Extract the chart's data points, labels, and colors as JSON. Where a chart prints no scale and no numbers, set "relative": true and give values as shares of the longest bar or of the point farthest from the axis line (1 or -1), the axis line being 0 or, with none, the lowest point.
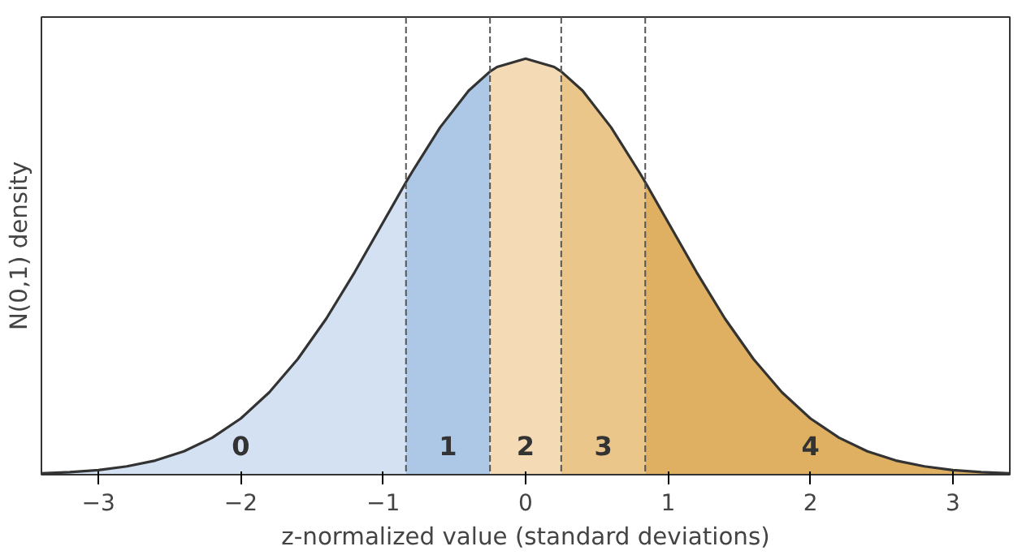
{
  "chart_data": {
    "type": "area",
    "relative": true,
    "xlabel": "z-normalized value (standard deviations)",
    "ylabel": "N(0,1) density",
    "xlim": [
      -3.4,
      3.4
    ],
    "xticks": [
      {
        "value": -3,
        "label": "−3"
      },
      {
        "value": -2,
        "label": "−2"
      },
      {
        "value": -1,
        "label": "−1"
      },
      0,
      1,
      2,
      3
    ],
    "grid": false,
    "series": [
      {
        "color": "#d3e1f2",
        "x": [
          -3.4,
          -3.2,
          -3.0,
          -2.8,
          -2.6,
          -2.4,
          -2.2,
          -2.0,
          -1.8,
          -1.6,
          -1.4,
          -1.2,
          -1.0,
          -0.84
        ],
        "values": [
          0.003,
          0.006,
          0.011,
          0.02,
          0.034,
          0.056,
          0.089,
          0.135,
          0.198,
          0.278,
          0.375,
          0.487,
          0.607,
          0.703
        ]
      },
      {
        "color": "#adc8e6",
        "x": [
          -0.84,
          -0.8,
          -0.6,
          -0.4,
          -0.25
        ],
        "values": [
          0.703,
          0.726,
          0.835,
          0.923,
          0.969
        ]
      },
      {
        "color": "#f4dbb5",
        "x": [
          -0.25,
          -0.2,
          0,
          0.2,
          0.25
        ],
        "values": [
          0.969,
          0.98,
          1.0,
          0.98,
          0.969
        ]
      },
      {
        "color": "#eac68a",
        "x": [
          0.25,
          0.4,
          0.6,
          0.8,
          0.84
        ],
        "values": [
          0.969,
          0.923,
          0.835,
          0.726,
          0.703
        ]
      },
      {
        "color": "#e0b062",
        "x": [
          0.84,
          1.0,
          1.2,
          1.4,
          1.6,
          1.8,
          2.0,
          2.2,
          2.4,
          2.6,
          2.8,
          3.0,
          3.2,
          3.4
        ],
        "values": [
          0.703,
          0.607,
          0.487,
          0.375,
          0.278,
          0.198,
          0.135,
          0.089,
          0.056,
          0.034,
          0.02,
          0.011,
          0.006,
          0.003
        ]
      },
      {
        "type": "line",
        "color": "#333333",
        "x": [
          -3.4,
          -3.2,
          -3.0,
          -2.8,
          -2.6,
          -2.4,
          -2.2,
          -2.0,
          -1.8,
          -1.6,
          -1.4,
          -1.2,
          -1.0,
          -0.84,
          -0.8,
          -0.6,
          -0.4,
          -0.25,
          -0.2,
          0,
          0.2,
          0.25,
          0.4,
          0.6,
          0.8,
          0.84,
          1.0,
          1.2,
          1.4,
          1.6,
          1.8,
          2.0,
          2.2,
          2.4,
          2.6,
          2.8,
          3.0,
          3.2,
          3.4
        ],
        "values": [
          0.003,
          0.006,
          0.011,
          0.02,
          0.034,
          0.056,
          0.089,
          0.135,
          0.198,
          0.278,
          0.375,
          0.487,
          0.607,
          0.703,
          0.726,
          0.835,
          0.923,
          0.969,
          0.98,
          1.0,
          0.98,
          0.969,
          0.923,
          0.835,
          0.726,
          0.703,
          0.607,
          0.487,
          0.375,
          0.278,
          0.198,
          0.135,
          0.089,
          0.056,
          0.034,
          0.02,
          0.011,
          0.006,
          0.003
        ]
      }
    ],
    "ref_lines": [
      {
        "axis": "x",
        "value": -0.84,
        "color": "#555555",
        "line_style": "dashed"
      },
      {
        "axis": "x",
        "value": -0.25,
        "color": "#555555",
        "line_style": "dashed"
      },
      {
        "axis": "x",
        "value": 0.25,
        "color": "#555555",
        "line_style": "dashed"
      },
      {
        "axis": "x",
        "value": 0.84,
        "color": "#555555",
        "line_style": "dashed"
      }
    ],
    "annotations": [
      "0",
      "1",
      "2",
      "3",
      "4"
    ]
  }
}
